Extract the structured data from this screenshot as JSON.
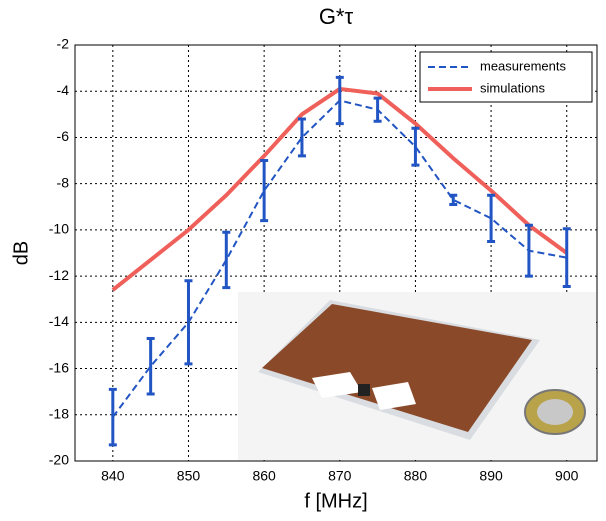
{
  "chart_data": {
    "type": "line",
    "title": "G*τ",
    "x_label": "f [MHz]",
    "y_label": "dB",
    "x": [
      840,
      845,
      850,
      855,
      860,
      865,
      870,
      875,
      880,
      885,
      890,
      895,
      900
    ],
    "series": [
      {
        "name": "measurements",
        "color": "#2255c4",
        "dashed": true,
        "values": [
          -18.1,
          -15.9,
          -14,
          -11.3,
          -8.3,
          -6,
          -4.4,
          -4.8,
          -6.4,
          -8.7,
          -9.5,
          -10.9,
          -11.2
        ],
        "errors": [
          1.2,
          1.2,
          1.8,
          1.2,
          1.3,
          0.8,
          1.0,
          0.5,
          0.8,
          0.2,
          1.0,
          1.1,
          1.25
        ]
      },
      {
        "name": "simulations",
        "color": "#f0605a",
        "dashed": false,
        "values": [
          -12.6,
          -11.3,
          -10,
          -8.5,
          -6.8,
          -5.0,
          -3.9,
          -4.1,
          -5.4,
          -6.9,
          -8.3,
          -9.8,
          -11
        ]
      }
    ],
    "xlim": [
      835,
      904
    ],
    "xticks": [
      840,
      850,
      860,
      870,
      880,
      890,
      900
    ],
    "ylim": [
      -20,
      -2
    ],
    "yticks": [
      -20,
      -18,
      -16,
      -14,
      -12,
      -10,
      -8,
      -6,
      -4,
      -2
    ],
    "grid": true,
    "legend": "upper right"
  }
}
